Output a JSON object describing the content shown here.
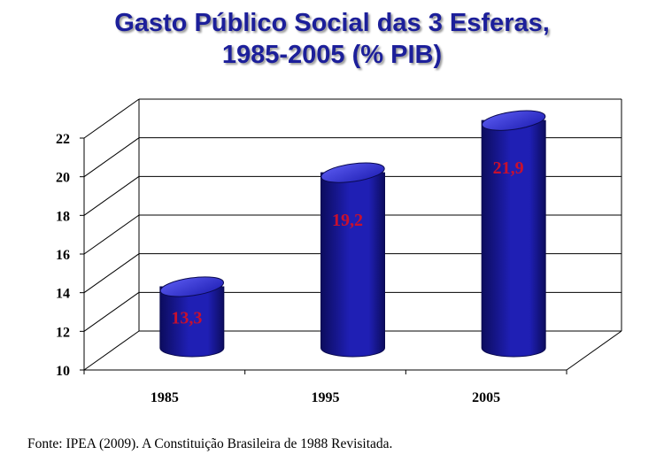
{
  "title_line1": "Gasto Público Social das 3 Esferas,",
  "title_line2": "1985-2005 (% PIB)",
  "source_note": "Fonte: IPEA (2009). A Constituição Brasileira de 1988 Revisitada.",
  "colors": {
    "bar": "#1f1fb4",
    "bar_dark": "#0c0c5e",
    "bar_light": "#5a5af0",
    "data_label": "#c8102e",
    "title": "#1c1f9a"
  },
  "chart_data": {
    "type": "bar",
    "style": "3d-cylinder",
    "categories": [
      "1985",
      "1995",
      "2005"
    ],
    "values": [
      13.3,
      19.2,
      21.9
    ],
    "data_labels": [
      "13,3",
      "19,2",
      "21,9"
    ],
    "ylim": [
      10,
      22
    ],
    "yticks": [
      10,
      12,
      14,
      16,
      18,
      20,
      22
    ],
    "grid": true,
    "legend": "none"
  }
}
